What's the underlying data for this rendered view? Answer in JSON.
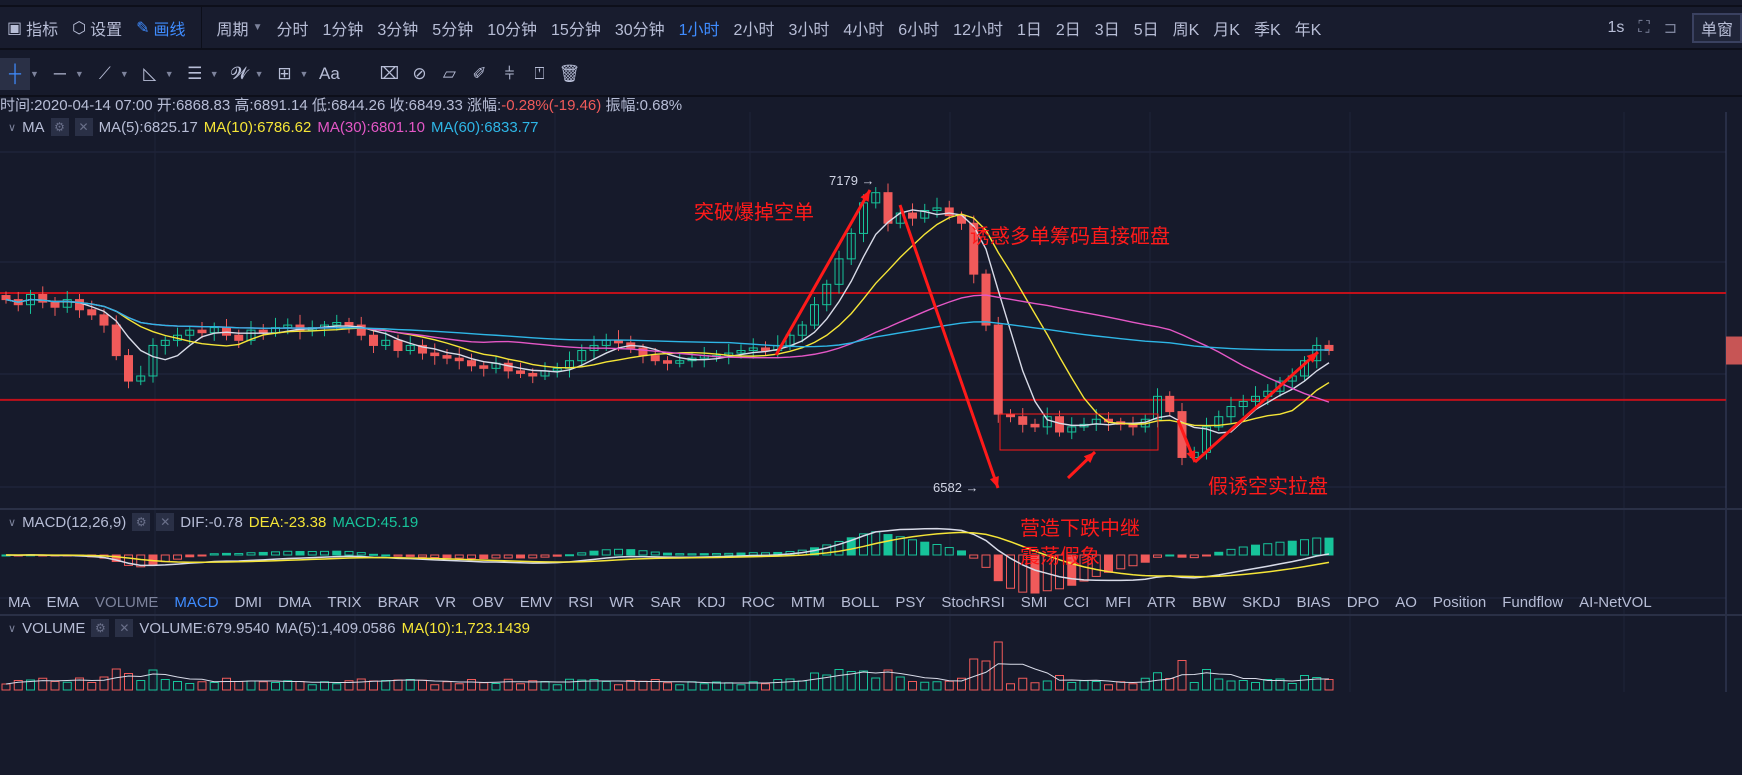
{
  "topbar": {
    "indicators": "指标",
    "settings": "设置",
    "draw": "画线",
    "period": "周期",
    "periods": [
      "分时",
      "1分钟",
      "3分钟",
      "5分钟",
      "10分钟",
      "15分钟",
      "30分钟",
      "1小时",
      "2小时",
      "3小时",
      "4小时",
      "6小时",
      "12小时",
      "1日",
      "2日",
      "3日",
      "5日",
      "周K",
      "月K",
      "季K",
      "年K"
    ],
    "active_period": "1小时",
    "refresh": "1s",
    "single": "单窗"
  },
  "tools": [
    "crosshair-icon",
    "horizontal-line-icon",
    "trend-line-icon",
    "angle-icon",
    "parallel-lines-icon",
    "wave-icon",
    "measure-box-icon",
    "text-icon",
    "eraser-icon",
    "magnet-icon",
    "ruler-icon",
    "pen-icon",
    "lock-icon",
    "copy-icon",
    "trash-icon"
  ],
  "tools_text": "Aa",
  "info": {
    "time": "时间:2020-04-14 07:00",
    "open": "开:6868.83",
    "high": "高:6891.14",
    "low": "低:6844.26",
    "close": "收:6849.33",
    "chg_label": "涨幅:",
    "chg": "-0.28%(-19.46)",
    "amp": "振幅:0.68%"
  },
  "ma_legend": {
    "name": "MA",
    "ma5": "MA(5):6825.17",
    "ma10": "MA(10):6786.62",
    "ma30": "MA(30):6801.10",
    "ma60": "MA(60):6833.77"
  },
  "macd_legend": {
    "name": "MACD(12,26,9)",
    "dif": "DIF:-0.78",
    "dea": "DEA:-23.38",
    "macd": "MACD:45.19"
  },
  "vol_legend": {
    "name": "VOLUME",
    "vol": "VOLUME:679.9540",
    "ma5": "MA(5):1,409.0586",
    "ma10": "MA(10):1,723.1439"
  },
  "indicator_tabs": [
    "MA",
    "EMA",
    "VOLUME",
    "MACD",
    "DMI",
    "DMA",
    "TRIX",
    "BRAR",
    "VR",
    "OBV",
    "EMV",
    "RSI",
    "WR",
    "SAR",
    "KDJ",
    "ROC",
    "MTM",
    "BOLL",
    "PSY",
    "StochRSI",
    "SMI",
    "CCI",
    "MFI",
    "ATR",
    "BBW",
    "SKDJ",
    "BIAS",
    "DPO",
    "AO",
    "Position",
    "Fundflow",
    "AI-NetVOL"
  ],
  "active_indicator": "MACD",
  "annotations": {
    "a1": "突破爆掉空单",
    "a2": "诱惑多单筹码直接砸盘",
    "a3_line1": "营造下跌中继",
    "a3_line2": "震荡假象",
    "a4": "假诱空实拉盘"
  },
  "price_marks": {
    "high": "7179 →",
    "low": "6582 →"
  },
  "colors": {
    "up": "#17c39a",
    "down": "#f05a5a",
    "bg": "#161a2b",
    "accent": "#3f8cff",
    "level": "#c0101a"
  },
  "chart_data": {
    "type": "candlestick",
    "levels": [
      6963,
      6753
    ],
    "high_mark": 7179,
    "low_mark": 6582,
    "closes": [
      6950,
      6940,
      6960,
      6945,
      6935,
      6950,
      6930,
      6920,
      6900,
      6840,
      6790,
      6800,
      6860,
      6870,
      6880,
      6890,
      6885,
      6895,
      6880,
      6870,
      6890,
      6885,
      6895,
      6900,
      6890,
      6895,
      6900,
      6905,
      6900,
      6880,
      6860,
      6870,
      6850,
      6860,
      6845,
      6840,
      6835,
      6830,
      6820,
      6815,
      6825,
      6810,
      6805,
      6800,
      6810,
      6815,
      6830,
      6850,
      6860,
      6870,
      6865,
      6855,
      6840,
      6830,
      6825,
      6830,
      6835,
      6840,
      6840,
      6845,
      6850,
      6855,
      6850,
      6860,
      6880,
      6900,
      6940,
      6980,
      7030,
      7080,
      7140,
      7160,
      7100,
      7120,
      7110,
      7125,
      7130,
      7115,
      7100,
      7000,
      6900,
      6725,
      6720,
      6705,
      6700,
      6720,
      6690,
      6700,
      6705,
      6715,
      6710,
      6705,
      6700,
      6715,
      6760,
      6730,
      6640,
      6650,
      6700,
      6720,
      6740,
      6750,
      6760,
      6770,
      6790,
      6800,
      6830,
      6860,
      6850
    ]
  }
}
